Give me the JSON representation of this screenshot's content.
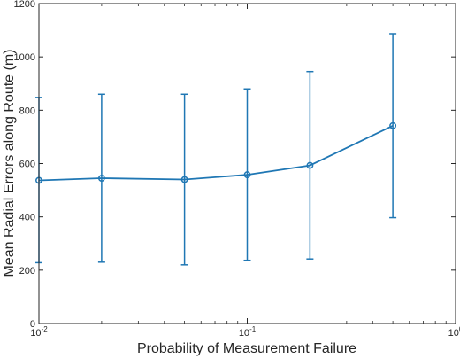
{
  "chart_data": {
    "type": "line",
    "xscale": "log",
    "xlabel": "Probability of Measurement Failure",
    "ylabel": "Mean Radial Errors along Route (m)",
    "xlim": [
      0.01,
      1
    ],
    "ylim": [
      0,
      1200
    ],
    "grid": false,
    "legend": "none",
    "yticks": [
      0,
      200,
      400,
      600,
      800,
      1000,
      1200
    ],
    "yticklabels": [
      "0",
      "200",
      "400",
      "600",
      "800",
      "1000",
      "1200"
    ],
    "xticks": [
      {
        "value": 0.01,
        "base": "10",
        "exp": "-2"
      },
      {
        "value": 0.1,
        "base": "10",
        "exp": "-1"
      },
      {
        "value": 1,
        "base": "10",
        "exp": "0"
      }
    ],
    "series": [
      {
        "color": "#1f77b4",
        "marker": "circle",
        "x": [
          0.01,
          0.02,
          0.05,
          0.1,
          0.2,
          0.5
        ],
        "y": [
          537,
          545,
          540,
          558,
          593,
          742
        ],
        "err_low": [
          228,
          230,
          220,
          237,
          242,
          397
        ],
        "err_high": [
          848,
          860,
          860,
          880,
          945,
          1087
        ]
      }
    ]
  }
}
